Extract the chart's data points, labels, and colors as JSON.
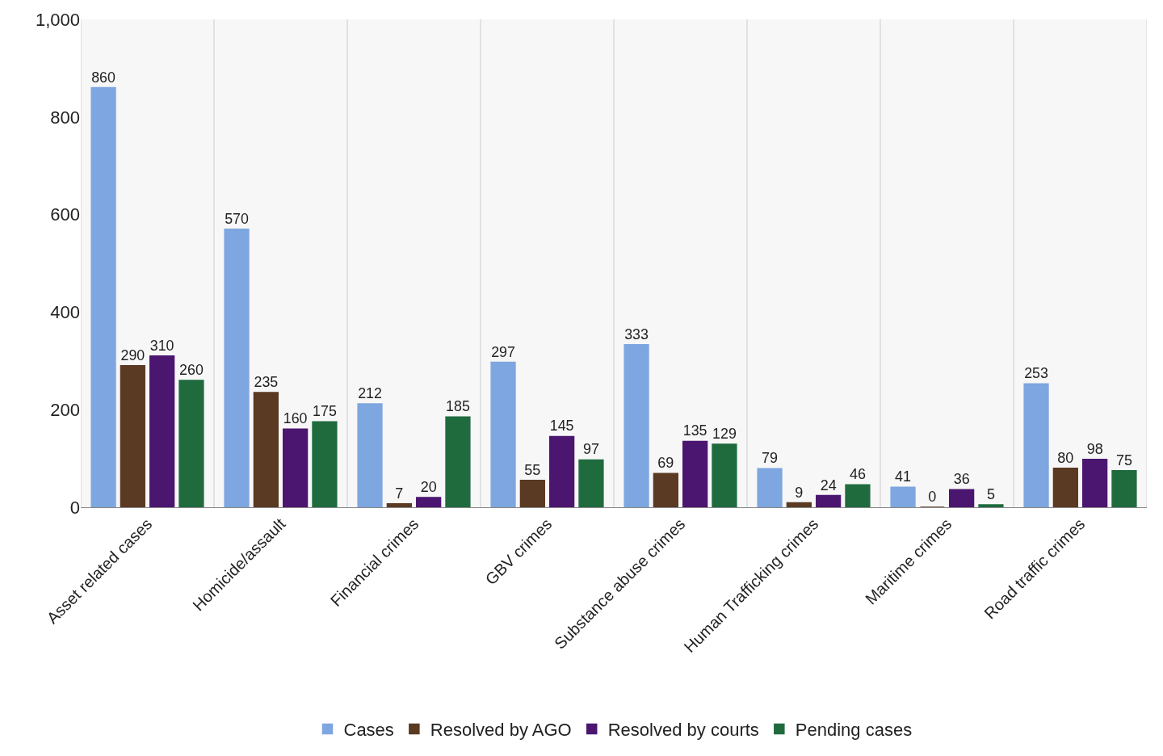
{
  "chart_data": {
    "type": "bar",
    "categories": [
      "Asset related cases",
      "Homicide/assault",
      "Financial crimes",
      "GBV crimes",
      "Substance abuse crimes",
      "Human Trafficking crimes",
      "Maritime crimes",
      "Road traffic crimes"
    ],
    "series": [
      {
        "name": "Cases",
        "color": "#7ea6e0",
        "values": [
          860,
          570,
          212,
          297,
          333,
          79,
          41,
          253
        ]
      },
      {
        "name": "Resolved by AGO",
        "color": "#5a3a22",
        "values": [
          290,
          235,
          7,
          55,
          69,
          9,
          0,
          80
        ]
      },
      {
        "name": "Resolved by courts",
        "color": "#4b1670",
        "values": [
          310,
          160,
          20,
          145,
          135,
          24,
          36,
          98
        ]
      },
      {
        "name": "Pending cases",
        "color": "#1f6b3e",
        "values": [
          260,
          175,
          185,
          97,
          129,
          46,
          5,
          75
        ]
      }
    ],
    "ylim": [
      0,
      1000
    ],
    "yticks": [
      0,
      200,
      400,
      600,
      800,
      {
        "value": 1000,
        "label": "1,000"
      }
    ],
    "data_labels": true,
    "grid": "x",
    "legend": "bottom"
  }
}
